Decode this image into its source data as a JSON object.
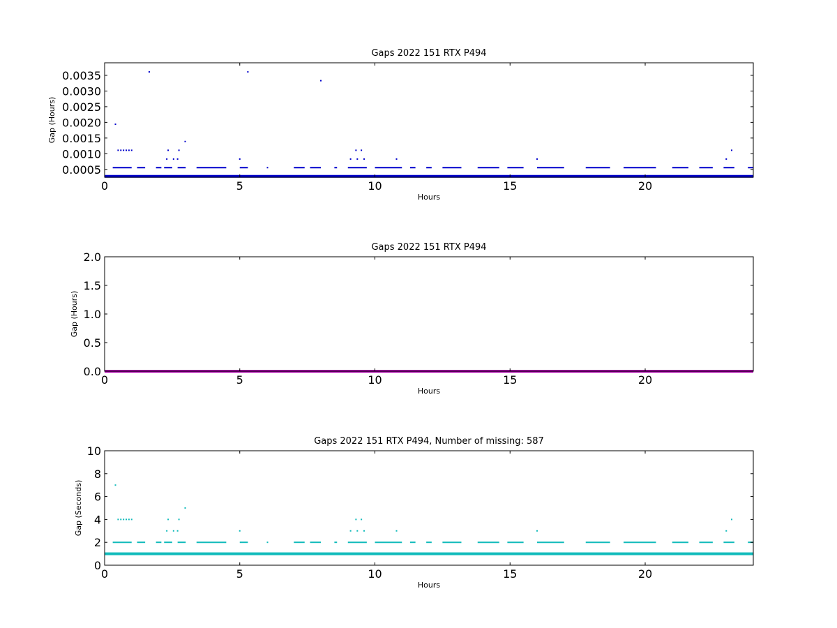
{
  "chart_data": [
    {
      "type": "scatter",
      "title": "Gaps 2022 151 RTX  P494",
      "xlabel": "Hours",
      "ylabel": "Gap (Hours)",
      "xlim": [
        0,
        24
      ],
      "ylim": [
        0.00025,
        0.0039
      ],
      "xticks": [
        0,
        5,
        10,
        15,
        20
      ],
      "yticks": [
        0.0005,
        0.001,
        0.0015,
        0.002,
        0.0025,
        0.003,
        0.0035
      ],
      "ytick_labels": [
        "0.0005",
        "0.0010",
        "0.0015",
        "0.0020",
        "0.0025",
        "0.0030",
        "0.0035"
      ],
      "color": "#0000cc",
      "baseline": {
        "y": 0.000278,
        "x_range": [
          0,
          24
        ]
      },
      "series": [
        {
          "x": [
            0.4,
            1.65,
            5.3,
            8.0
          ],
          "y": [
            0.00194,
            0.00361,
            0.00361,
            0.00333
          ]
        },
        {
          "x": [
            2.98
          ],
          "y": [
            0.00139
          ]
        },
        {
          "x": [
            0.5,
            0.6,
            0.7,
            0.8,
            0.9,
            1.0,
            2.35,
            2.75,
            9.3,
            9.5,
            23.2
          ],
          "y": [
            0.00111,
            0.00111,
            0.00111,
            0.00111,
            0.00111,
            0.00111,
            0.00111,
            0.00111,
            0.00111,
            0.00111,
            0.00111
          ]
        },
        {
          "x": [
            2.3,
            2.55,
            2.7,
            5.0,
            9.1,
            9.35,
            9.6,
            10.8,
            16.0,
            23.0
          ],
          "y": [
            0.00083,
            0.00083,
            0.00083,
            0.00083,
            0.00083,
            0.00083,
            0.00083,
            0.00083,
            0.00083,
            0.00083
          ]
        },
        {
          "x_ranges": [
            [
              0.3,
              1.0
            ],
            [
              1.2,
              1.5
            ],
            [
              1.9,
              2.1
            ],
            [
              2.2,
              2.5
            ],
            [
              2.7,
              3.0
            ],
            [
              3.4,
              4.5
            ],
            [
              5.0,
              5.3
            ],
            [
              6.0,
              6.0
            ],
            [
              7.0,
              7.4
            ],
            [
              7.6,
              8.0
            ],
            [
              8.5,
              8.6
            ],
            [
              9.0,
              9.7
            ],
            [
              10.0,
              11.0
            ],
            [
              11.3,
              11.5
            ],
            [
              11.9,
              12.1
            ],
            [
              12.5,
              13.2
            ],
            [
              13.8,
              14.6
            ],
            [
              14.9,
              15.5
            ],
            [
              16.0,
              17.0
            ],
            [
              17.8,
              18.7
            ],
            [
              19.2,
              20.4
            ],
            [
              21.0,
              21.6
            ],
            [
              22.0,
              22.5
            ],
            [
              22.9,
              23.3
            ],
            [
              23.8,
              24.0
            ]
          ],
          "y": 0.000556
        }
      ]
    },
    {
      "type": "scatter",
      "title": "Gaps 2022 151 RTX  P494",
      "xlabel": "Hours",
      "ylabel": "Gap (Hours)",
      "xlim": [
        0,
        24
      ],
      "ylim": [
        0,
        2.0
      ],
      "xticks": [
        0,
        5,
        10,
        15,
        20
      ],
      "yticks": [
        0,
        0.5,
        1.0,
        1.5,
        2.0
      ],
      "ytick_labels": [
        "0.0",
        "0.5",
        "1.0",
        "1.5",
        "2.0"
      ],
      "color": "#aa00aa",
      "baseline": {
        "y": 0.0,
        "x_range": [
          0,
          24
        ]
      }
    },
    {
      "type": "scatter",
      "title": "Gaps 2022 151 RTX  P494, Number of missing: 587",
      "xlabel": "Hours",
      "ylabel": "Gap (Seconds)",
      "xlim": [
        0,
        24
      ],
      "ylim": [
        0,
        10
      ],
      "xticks": [
        0,
        5,
        10,
        15,
        20
      ],
      "yticks": [
        0,
        2,
        4,
        6,
        8,
        10
      ],
      "ytick_labels": [
        "0",
        "2",
        "4",
        "6",
        "8",
        "10"
      ],
      "color": "#11bbbb",
      "baseline": {
        "y": 1.0,
        "x_range": [
          0,
          24
        ]
      },
      "series": [
        {
          "x": [
            0.4
          ],
          "y": [
            7
          ]
        },
        {
          "x": [
            2.98
          ],
          "y": [
            5
          ]
        },
        {
          "x": [
            0.5,
            0.6,
            0.7,
            0.8,
            0.9,
            1.0,
            2.35,
            2.75,
            9.3,
            9.5,
            23.2
          ],
          "y": [
            4,
            4,
            4,
            4,
            4,
            4,
            4,
            4,
            4,
            4,
            4
          ]
        },
        {
          "x": [
            2.3,
            2.55,
            2.7,
            5.0,
            9.1,
            9.35,
            9.6,
            10.8,
            16.0,
            23.0
          ],
          "y": [
            3,
            3,
            3,
            3,
            3,
            3,
            3,
            3,
            3,
            3
          ]
        },
        {
          "x_ranges": [
            [
              0.3,
              1.0
            ],
            [
              1.2,
              1.5
            ],
            [
              1.9,
              2.1
            ],
            [
              2.2,
              2.5
            ],
            [
              2.7,
              3.0
            ],
            [
              3.4,
              4.5
            ],
            [
              5.0,
              5.3
            ],
            [
              6.0,
              6.0
            ],
            [
              7.0,
              7.4
            ],
            [
              7.6,
              8.0
            ],
            [
              8.5,
              8.6
            ],
            [
              9.0,
              9.7
            ],
            [
              10.0,
              11.0
            ],
            [
              11.3,
              11.5
            ],
            [
              11.9,
              12.1
            ],
            [
              12.5,
              13.2
            ],
            [
              13.8,
              14.6
            ],
            [
              14.9,
              15.5
            ],
            [
              16.0,
              17.0
            ],
            [
              17.8,
              18.7
            ],
            [
              19.2,
              20.4
            ],
            [
              21.0,
              21.6
            ],
            [
              22.0,
              22.5
            ],
            [
              22.9,
              23.3
            ],
            [
              23.8,
              24.0
            ]
          ],
          "y": 2
        }
      ]
    }
  ]
}
